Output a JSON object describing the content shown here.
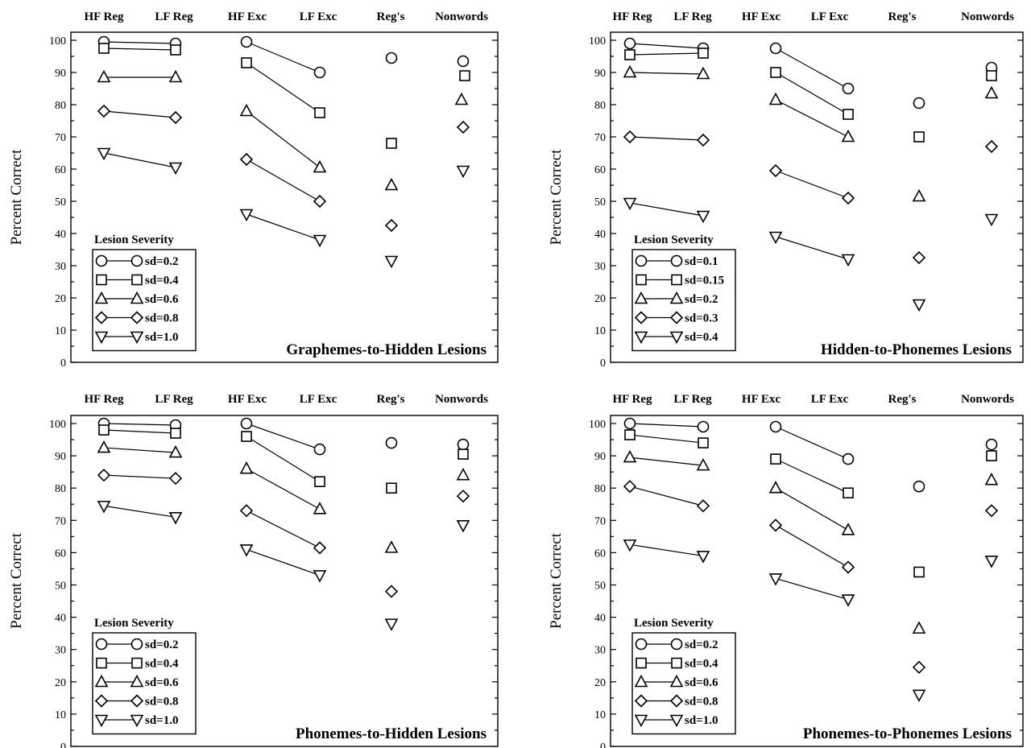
{
  "chart_data": [
    {
      "type": "line",
      "title": "Graphemes-to-Hidden Lesions",
      "ylabel": "Percent Correct",
      "ylim": [
        0,
        100
      ],
      "yticks": [
        0,
        10,
        20,
        30,
        40,
        50,
        60,
        70,
        80,
        90,
        100
      ],
      "categories": [
        "HF Reg",
        "LF Reg",
        "HF Exc",
        "LF Exc",
        "Reg's",
        "Nonwords"
      ],
      "legend_title": "Lesion Severity",
      "legend_position": "bottom-left",
      "series": [
        {
          "name": "sd=0.2",
          "marker": "circle",
          "values": [
            99.5,
            99,
            99.5,
            90,
            94.5,
            93.5
          ]
        },
        {
          "name": "sd=0.4",
          "marker": "square",
          "values": [
            97.5,
            97,
            93,
            77.5,
            68,
            89
          ]
        },
        {
          "name": "sd=0.6",
          "marker": "triangle-up",
          "values": [
            88.5,
            88.5,
            78,
            60.5,
            55,
            81.5
          ]
        },
        {
          "name": "sd=0.8",
          "marker": "diamond",
          "values": [
            78,
            76,
            63,
            50,
            42.5,
            73
          ]
        },
        {
          "name": "sd=1.0",
          "marker": "triangle-down",
          "values": [
            65,
            60.5,
            46,
            38,
            31.5,
            59.5
          ]
        }
      ]
    },
    {
      "type": "line",
      "title": "Hidden-to-Phonemes Lesions",
      "ylabel": "Percent Correct",
      "ylim": [
        0,
        100
      ],
      "yticks": [
        0,
        10,
        20,
        30,
        40,
        50,
        60,
        70,
        80,
        90,
        100
      ],
      "categories": [
        "HF Reg",
        "LF Reg",
        "HF Exc",
        "LF Exc",
        "Reg's",
        "Nonwords"
      ],
      "legend_title": "Lesion Severity",
      "legend_position": "bottom-left",
      "series": [
        {
          "name": "sd=0.1",
          "marker": "circle",
          "values": [
            99,
            97.5,
            97.5,
            85,
            80.5,
            91.5
          ]
        },
        {
          "name": "sd=0.15",
          "marker": "square",
          "values": [
            95.5,
            96,
            90,
            77,
            70,
            89
          ]
        },
        {
          "name": "sd=0.2",
          "marker": "triangle-up",
          "values": [
            90,
            89.5,
            81.5,
            70,
            51.5,
            83.5
          ]
        },
        {
          "name": "sd=0.3",
          "marker": "diamond",
          "values": [
            70,
            69,
            59.5,
            51,
            32.5,
            67
          ]
        },
        {
          "name": "sd=0.4",
          "marker": "triangle-down",
          "values": [
            49.5,
            45.5,
            39,
            32,
            18,
            44.5
          ]
        }
      ]
    },
    {
      "type": "line",
      "title": "Phonemes-to-Hidden Lesions",
      "ylabel": "Percent Correct",
      "ylim": [
        0,
        100
      ],
      "yticks": [
        0,
        10,
        20,
        30,
        40,
        50,
        60,
        70,
        80,
        90,
        100
      ],
      "categories": [
        "HF Reg",
        "LF Reg",
        "HF Exc",
        "LF Exc",
        "Reg's",
        "Nonwords"
      ],
      "legend_title": "Lesion Severity",
      "legend_position": "bottom-left",
      "series": [
        {
          "name": "sd=0.2",
          "marker": "circle",
          "values": [
            100,
            99.5,
            100,
            92,
            94,
            93.5
          ]
        },
        {
          "name": "sd=0.4",
          "marker": "square",
          "values": [
            98,
            97,
            96,
            82,
            80,
            90.5
          ]
        },
        {
          "name": "sd=0.6",
          "marker": "triangle-up",
          "values": [
            92.5,
            91,
            86,
            73.5,
            61.5,
            84
          ]
        },
        {
          "name": "sd=0.8",
          "marker": "diamond",
          "values": [
            84,
            83,
            73,
            61.5,
            48,
            77.5
          ]
        },
        {
          "name": "sd=1.0",
          "marker": "triangle-down",
          "values": [
            74.5,
            71,
            61,
            53,
            38,
            68.5
          ]
        }
      ]
    },
    {
      "type": "line",
      "title": "Phonemes-to-Phonemes Lesions",
      "ylabel": "Percent Correct",
      "ylim": [
        0,
        100
      ],
      "yticks": [
        0,
        10,
        20,
        30,
        40,
        50,
        60,
        70,
        80,
        90,
        100
      ],
      "categories": [
        "HF Reg",
        "LF Reg",
        "HF Exc",
        "LF Exc",
        "Reg's",
        "Nonwords"
      ],
      "legend_title": "Lesion Severity",
      "legend_position": "bottom-left",
      "series": [
        {
          "name": "sd=0.2",
          "marker": "circle",
          "values": [
            100,
            99,
            99,
            89,
            80.5,
            93.5
          ]
        },
        {
          "name": "sd=0.4",
          "marker": "square",
          "values": [
            96.5,
            94,
            89,
            78.5,
            54,
            90
          ]
        },
        {
          "name": "sd=0.6",
          "marker": "triangle-up",
          "values": [
            89.5,
            87,
            80,
            67,
            36.5,
            82.5
          ]
        },
        {
          "name": "sd=0.8",
          "marker": "diamond",
          "values": [
            80.5,
            74.5,
            68.5,
            55.5,
            24.5,
            73
          ]
        },
        {
          "name": "sd=1.0",
          "marker": "triangle-down",
          "values": [
            62.5,
            59,
            52,
            45.5,
            16,
            57.5
          ]
        }
      ]
    }
  ]
}
